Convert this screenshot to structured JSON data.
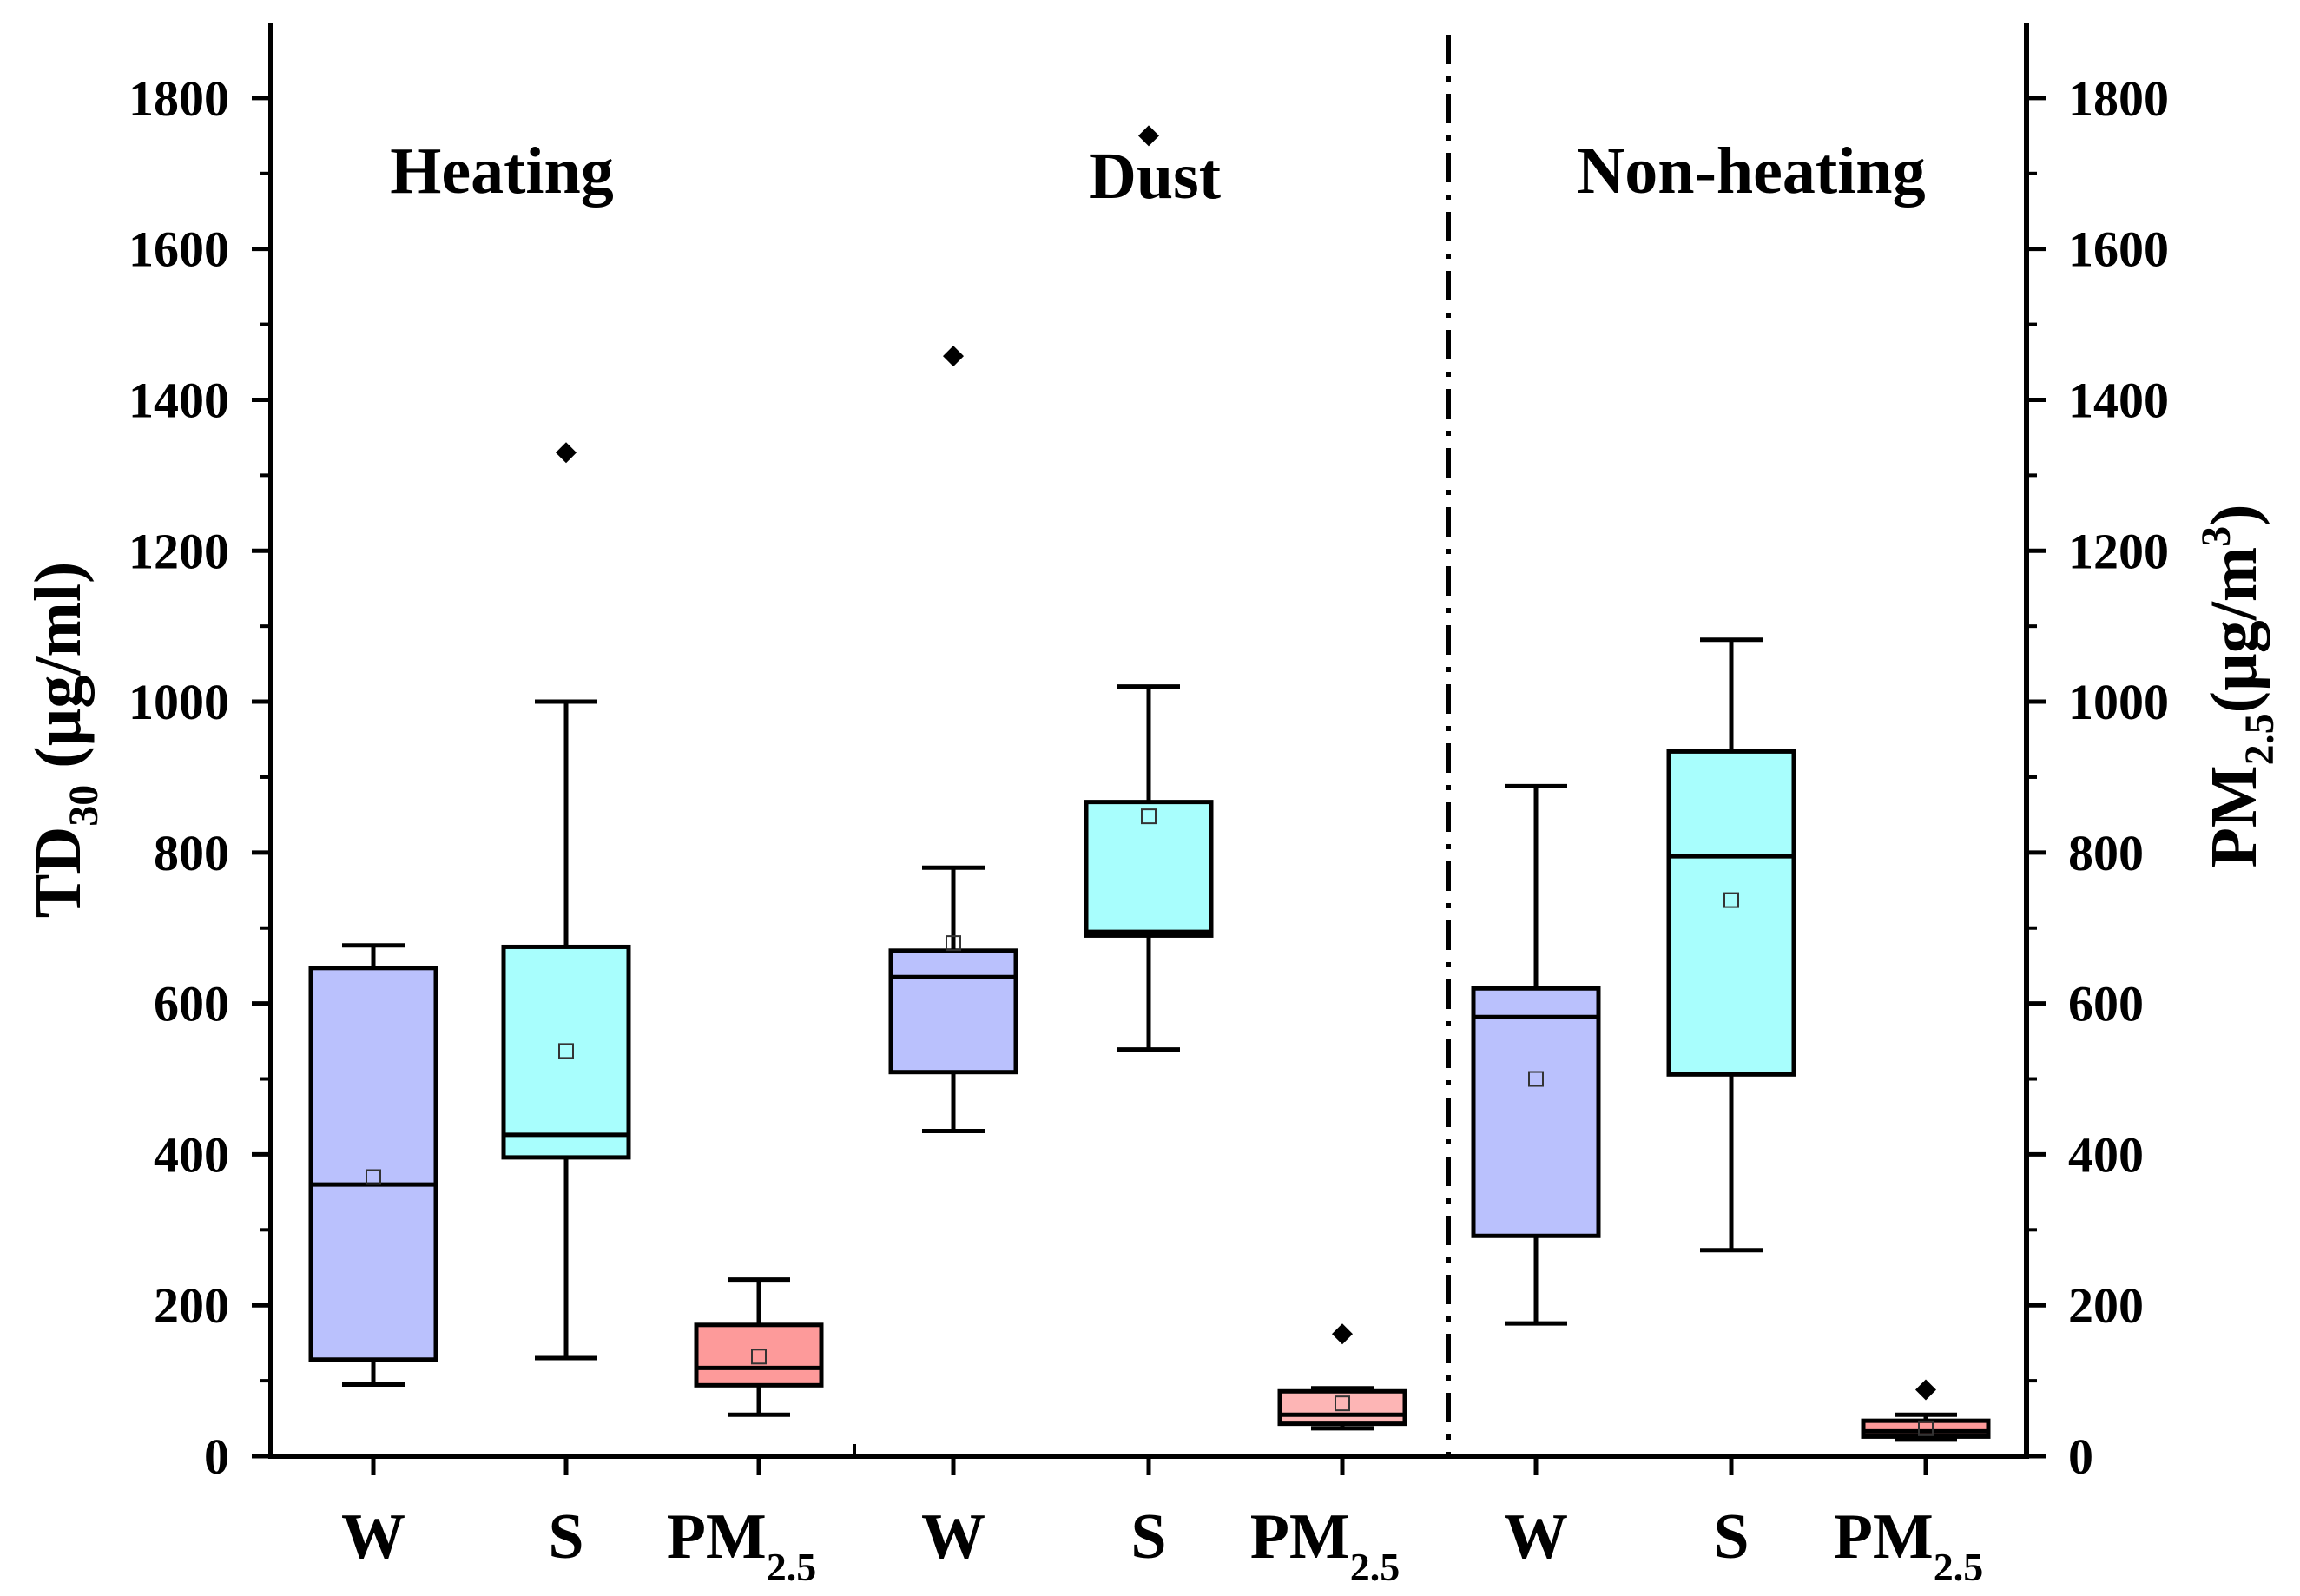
{
  "chart_data": {
    "type": "box",
    "ylabel_left": {
      "main": "TD",
      "sub": "30",
      "rest": " (µg/ml)"
    },
    "ylabel_right": {
      "main": "PM",
      "sub": "2.5",
      "mid": "(µg/m",
      "sup": "3",
      "end": ")"
    },
    "ylim": [
      0,
      1900
    ],
    "yticks": [
      0,
      200,
      400,
      600,
      800,
      1000,
      1200,
      1400,
      1600,
      1800
    ],
    "ytick_labels": [
      "0",
      "200",
      "400",
      "600",
      "800",
      "1000",
      "1200",
      "1400",
      "1600",
      "1800"
    ],
    "groups": [
      {
        "label": "Heating"
      },
      {
        "label": "Dust"
      },
      {
        "label": "Non-heating"
      }
    ],
    "categories": [
      {
        "group": 0,
        "label": "W",
        "sub": "",
        "color": "#bac1fd",
        "whisker_low": 95,
        "q1": 128,
        "median": 360,
        "q3": 647,
        "whisker_high": 677,
        "mean": 370,
        "outliers": []
      },
      {
        "group": 0,
        "label": "S",
        "sub": "",
        "color": "#a8fefd",
        "whisker_low": 130,
        "q1": 396,
        "median": 426,
        "q3": 675,
        "whisker_high": 1000,
        "mean": 537,
        "outliers": [
          1330
        ]
      },
      {
        "group": 0,
        "label": "PM",
        "sub": "2.5",
        "color": "#fd9a9a",
        "whisker_low": 55,
        "q1": 94,
        "median": 117,
        "q3": 174,
        "whisker_high": 234,
        "mean": 132,
        "outliers": []
      },
      {
        "group": 1,
        "label": "W",
        "sub": "",
        "color": "#bac1fd",
        "whisker_low": 431,
        "q1": 509,
        "median": 635,
        "q3": 670,
        "whisker_high": 780,
        "mean": 680,
        "outliers": [
          1458
        ]
      },
      {
        "group": 1,
        "label": "S",
        "sub": "",
        "color": "#a8fefd",
        "whisker_low": 539,
        "q1": 690,
        "median": 695,
        "q3": 867,
        "whisker_high": 1020,
        "mean": 848,
        "outliers": [
          1750
        ]
      },
      {
        "group": 1,
        "label": "PM",
        "sub": "2.5",
        "color": "#fdb5b5",
        "whisker_low": 37,
        "q1": 43,
        "median": 55,
        "q3": 86,
        "whisker_high": 90,
        "mean": 70,
        "outliers": [
          162
        ]
      },
      {
        "group": 2,
        "label": "W",
        "sub": "",
        "color": "#bac1fd",
        "whisker_low": 176,
        "q1": 292,
        "median": 582,
        "q3": 620,
        "whisker_high": 888,
        "mean": 500,
        "outliers": []
      },
      {
        "group": 2,
        "label": "S",
        "sub": "",
        "color": "#a8fefd",
        "whisker_low": 273,
        "q1": 506,
        "median": 795,
        "q3": 934,
        "whisker_high": 1082,
        "mean": 737,
        "outliers": []
      },
      {
        "group": 2,
        "label": "PM",
        "sub": "2.5",
        "color": "#fd9a9a",
        "whisker_low": 22,
        "q1": 26,
        "median": 33,
        "q3": 47,
        "whisker_high": 55,
        "mean": 37,
        "outliers": [
          88
        ]
      }
    ]
  }
}
